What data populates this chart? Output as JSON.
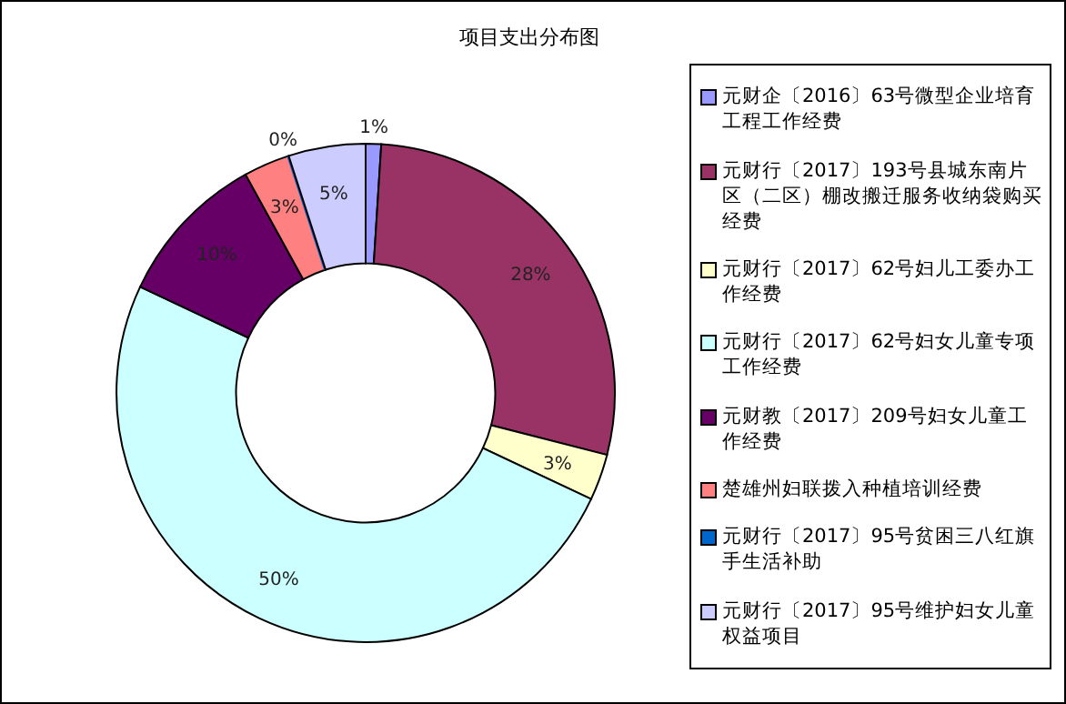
{
  "chart_data": {
    "type": "donut",
    "title": "项目支出分布图",
    "categories": [
      "元财企〔2016〕63号微型企业培育工程工作经费",
      "元财行〔2017〕193号县城东南片区（二区）棚改搬迁服务收纳袋购买经费",
      "元财行〔2017〕62号妇儿工委办工作经费",
      "元财行〔2017〕62号妇女儿童专项工作经费",
      "元财教〔2017〕209号妇女儿童工作经费",
      "楚雄州妇联拨入种植培训经费",
      "元财行〔2017〕95号贫困三八红旗手生活补助",
      "元财行〔2017〕95号维护妇女儿童权益项目"
    ],
    "values": [
      1,
      28,
      3,
      50,
      10,
      3,
      0,
      5
    ],
    "value_labels": [
      "1%",
      "28%",
      "3%",
      "50%",
      "10%",
      "3%",
      "0%",
      "5%"
    ],
    "colors": [
      "#9999ff",
      "#993366",
      "#ffffcc",
      "#ccffff",
      "#660066",
      "#ff8080",
      "#0066cc",
      "#ccccff"
    ],
    "legend": "right"
  }
}
